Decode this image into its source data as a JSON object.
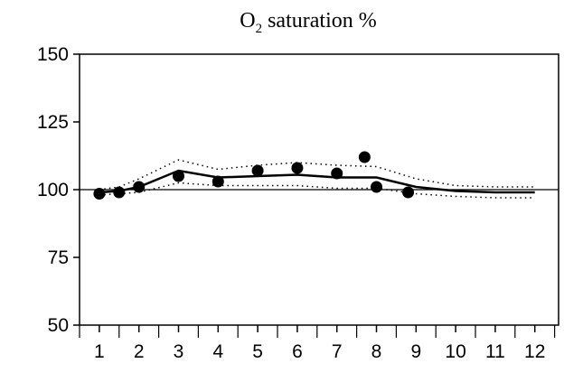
{
  "chart_data": {
    "type": "line",
    "title": {
      "prefix": "O",
      "subscript": "2",
      "suffix": " saturation %"
    },
    "xlabel": "",
    "ylabel": "",
    "x_ticks": [
      "1",
      "2",
      "3",
      "4",
      "5",
      "6",
      "7",
      "8",
      "9",
      "10",
      "11",
      "12"
    ],
    "y_ticks": [
      50,
      75,
      100,
      125,
      150
    ],
    "xlim": [
      0.5,
      12.6
    ],
    "ylim": [
      50,
      150
    ],
    "reference_line": 100,
    "grid": false,
    "points": {
      "x": [
        1.0,
        1.5,
        2.0,
        3.0,
        4.0,
        5.0,
        6.0,
        7.0,
        7.7,
        8.0,
        8.8
      ],
      "y": [
        98.5,
        99,
        101,
        105,
        103,
        107,
        108,
        106,
        112,
        101,
        99
      ]
    },
    "mean_line": {
      "x": [
        1.0,
        1.5,
        2.0,
        3.0,
        4.0,
        5.0,
        6.0,
        7.0,
        8.0,
        9.0,
        10.0,
        11.0,
        12.0
      ],
      "y": [
        99,
        99.5,
        101,
        107,
        104.5,
        105,
        105.5,
        104.5,
        104.5,
        101,
        99.5,
        99,
        99
      ]
    },
    "upper_band": {
      "x": [
        1.0,
        1.5,
        2.0,
        3.0,
        4.0,
        5.0,
        6.0,
        7.0,
        8.0,
        9.0,
        10.0,
        11.0,
        12.0
      ],
      "y": [
        100,
        101,
        104,
        111,
        107.5,
        109,
        110,
        109,
        108.5,
        104,
        101.5,
        101,
        101
      ]
    },
    "lower_band": {
      "x": [
        1.0,
        1.5,
        2.0,
        3.0,
        4.0,
        5.0,
        6.0,
        7.0,
        8.0,
        9.0,
        10.0,
        11.0,
        12.0
      ],
      "y": [
        98,
        98.5,
        99,
        102.5,
        101.5,
        101.5,
        101.5,
        100.5,
        100.5,
        98.5,
        97.5,
        97,
        97
      ]
    },
    "colors": {
      "series": "#000000",
      "axis": "#000000",
      "background": "#ffffff"
    }
  }
}
